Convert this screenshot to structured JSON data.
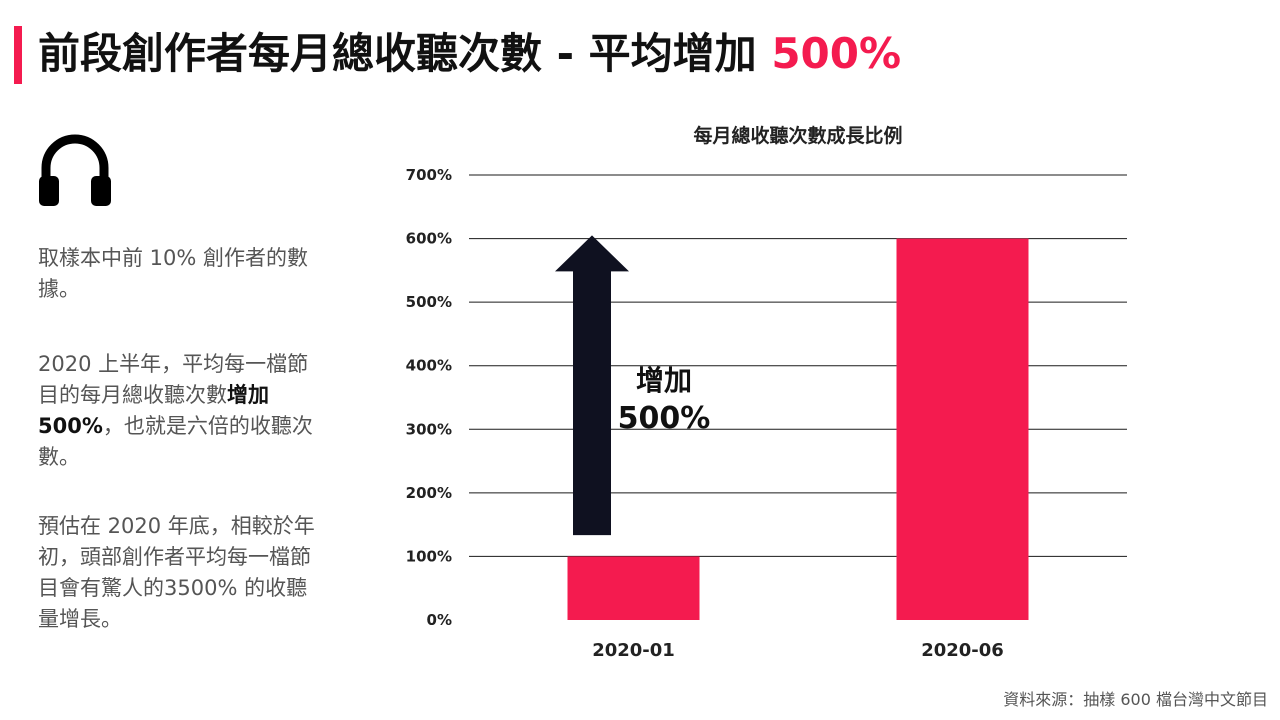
{
  "header": {
    "title_main": "前段創作者每月總收聽次數 - 平均增加 ",
    "title_highlight": "500%"
  },
  "sidebar": {
    "icon": "headphones-icon",
    "p1": "取樣本中前 10% 創作者的數據。",
    "p2_before": "2020 上半年，平均每一檔節目的每月總收聽次數",
    "p2_bold": "增加 500%",
    "p2_after": "，也就是六倍的收聽次數。",
    "p3": "預估在 2020 年底，相較於年初，頭部創作者平均每一檔節目會有驚人的3500% 的收聽量增長。"
  },
  "source": "資料來源：抽樣 600 檔台灣中文節目",
  "colors": {
    "accent": "#f41b4f",
    "arrow": "#0f1120",
    "text": "#1a1a1a"
  },
  "chart_data": {
    "type": "bar",
    "title": "每月總收聽次數成長比例",
    "categories": [
      "2020-01",
      "2020-06"
    ],
    "values": [
      100,
      600
    ],
    "ylim": [
      0,
      700
    ],
    "yticks": [
      0,
      100,
      200,
      300,
      400,
      500,
      600,
      700
    ],
    "ytick_labels": [
      "0%",
      "100%",
      "200%",
      "300%",
      "400%",
      "500%",
      "600%",
      "700%"
    ],
    "grid": true,
    "bar_color": "#f41b4f",
    "annotation": {
      "line1": "增加",
      "line2": "500%",
      "arrow_from": 110,
      "arrow_to": 605
    }
  }
}
